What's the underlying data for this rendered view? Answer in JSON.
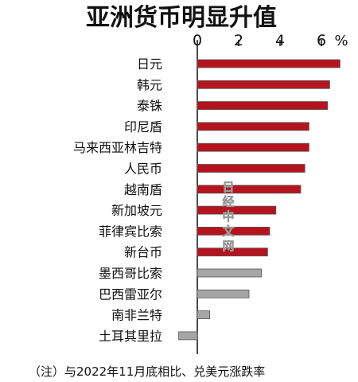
{
  "chart_data": {
    "type": "bar",
    "orientation": "horizontal",
    "title": "亚洲货币明显升值",
    "unit": "%",
    "xlim": [
      -1,
      7
    ],
    "x_ticks": [
      0,
      2,
      4,
      6
    ],
    "categories": [
      "日元",
      "韩元",
      "泰铢",
      "印尼盾",
      "马来西亚林吉特",
      "人民币",
      "越南盾",
      "新加坡元",
      "菲律宾比索",
      "新台币",
      "墨西哥比索",
      "巴西雷亚尔",
      "南非兰特",
      "土耳其里拉"
    ],
    "values": [
      6.9,
      6.4,
      6.3,
      5.4,
      5.4,
      5.2,
      5.0,
      3.8,
      3.5,
      3.4,
      3.1,
      2.5,
      0.6,
      -0.9
    ],
    "highlight_count": 10,
    "colors": {
      "highlight": "#b5141e",
      "other": "#a6a6a6",
      "bar_outline": "#555555"
    },
    "note": "（注）与2022年11月底相比、兑美元涨跌率",
    "watermark": "日经中文网"
  }
}
